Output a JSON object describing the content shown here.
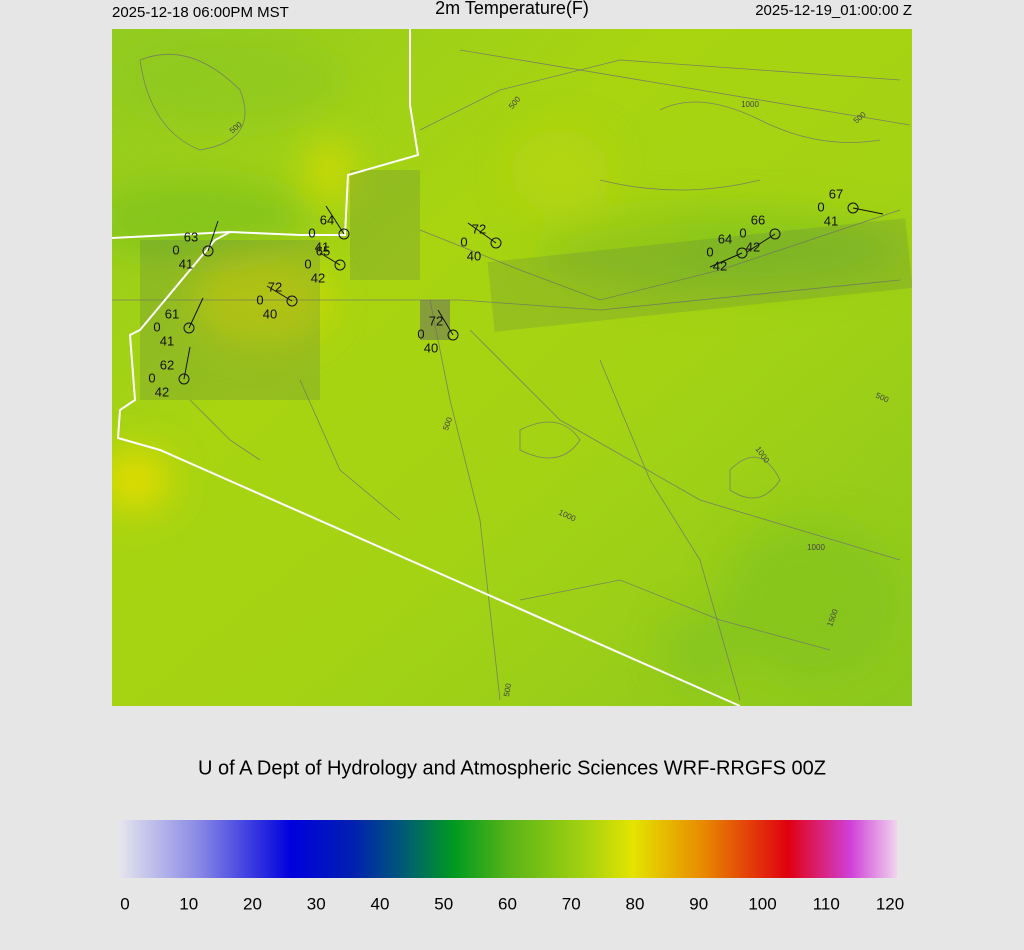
{
  "header": {
    "left": "2025-12-18 06:00PM MST",
    "title": "2m Temperature(F)",
    "right": "2025-12-19_01:00:00 Z"
  },
  "credit": "U of A Dept of Hydrology and Atmospheric Sciences WRF-RRGFS 00Z",
  "colorbar": {
    "ticks": [
      0,
      10,
      20,
      30,
      40,
      50,
      60,
      70,
      80,
      90,
      100,
      110,
      120
    ]
  },
  "stations": [
    {
      "temp": 63,
      "wind": 0,
      "dew": 41
    },
    {
      "temp": 64,
      "wind": 0,
      "dew": 41
    },
    {
      "temp": 65,
      "wind": 0,
      "dew": 42
    },
    {
      "temp": 72,
      "wind": 0,
      "dew": 40
    },
    {
      "temp": 72,
      "wind": 0,
      "dew": 40
    },
    {
      "temp": 72,
      "wind": 0,
      "dew": 40
    },
    {
      "temp": 61,
      "wind": 0,
      "dew": 41
    },
    {
      "temp": 62,
      "wind": 0,
      "dew": 42
    },
    {
      "temp": 64,
      "wind": 0,
      "dew": 42
    },
    {
      "temp": 66,
      "wind": 0,
      "dew": 42
    },
    {
      "temp": 67,
      "wind": 0,
      "dew": 41
    }
  ],
  "contour_labels": [
    "500",
    "500",
    "1000",
    "500",
    "500",
    "1000",
    "1000",
    "1000",
    "500",
    "1500",
    "500"
  ]
}
